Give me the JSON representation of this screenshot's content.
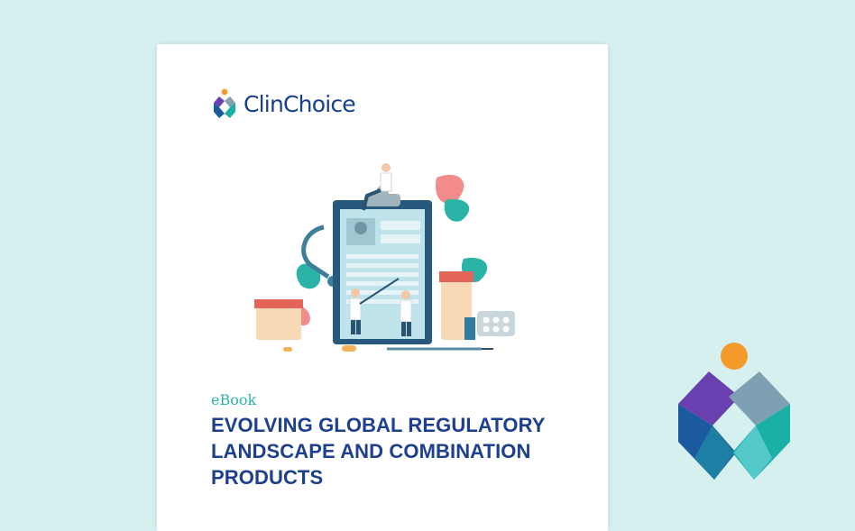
{
  "brand": {
    "name": "ClinChoice",
    "colors": {
      "purple": "#6a3fb0",
      "navy": "#173f8e",
      "teal": "#1ab0a5",
      "orange": "#f39a2b",
      "steel": "#7f9fb2"
    }
  },
  "cover": {
    "label": "eBook",
    "title_lines": [
      "EVOLVING GLOBAL REGULATORY",
      "LANDSCAPE AND COMBINATION",
      "PRODUCTS"
    ]
  },
  "icons": [
    "clinchoice-logo-icon",
    "clipboard-illustration",
    "clinchoice-large-mark-icon"
  ],
  "theme": {
    "background": "#d6f0ef",
    "title_color": "#1d3f8f",
    "label_color": "#2bb3a8"
  }
}
